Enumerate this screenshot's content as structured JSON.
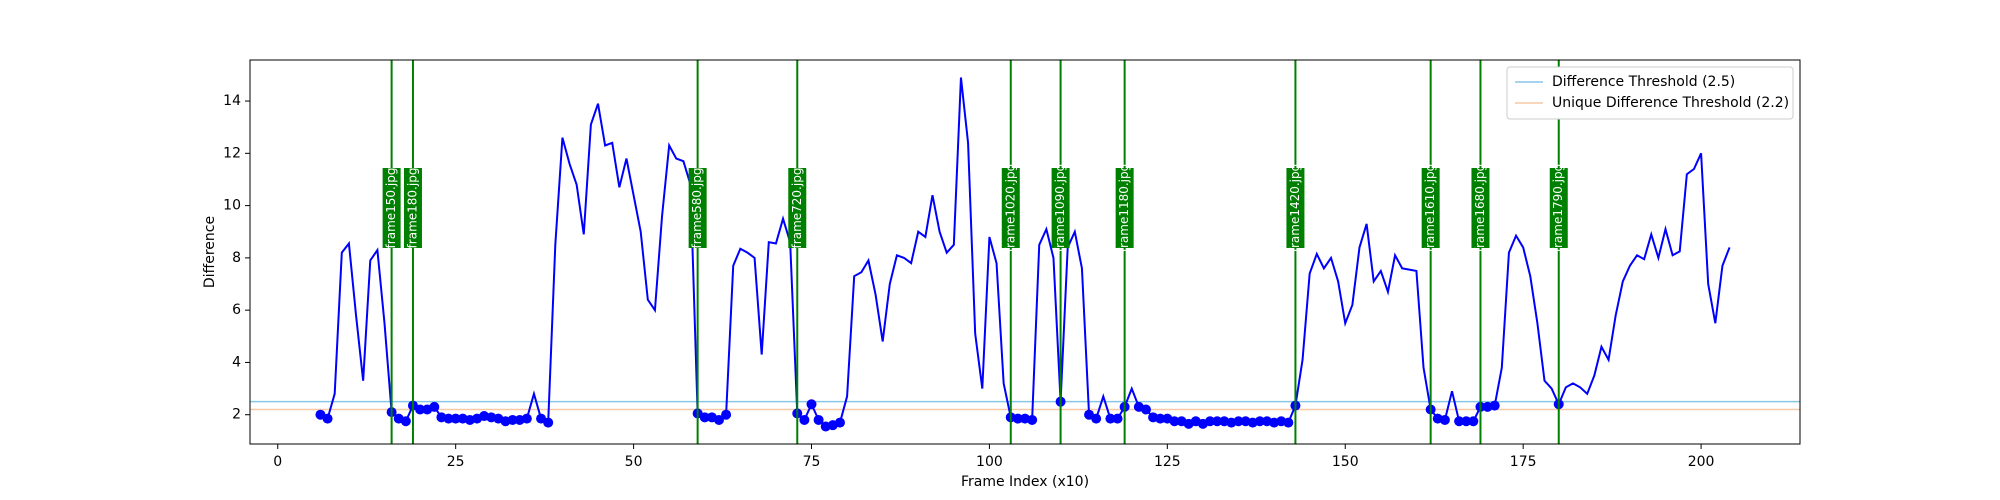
{
  "chart_data": {
    "type": "line",
    "xlabel": "Frame Index (x10)",
    "ylabel": "Difference",
    "x": [
      6,
      7,
      8,
      9,
      10,
      11,
      12,
      13,
      14,
      15,
      16,
      17,
      18,
      19,
      20,
      21,
      22,
      23,
      24,
      25,
      26,
      27,
      28,
      29,
      30,
      31,
      32,
      33,
      34,
      35,
      36,
      37,
      38,
      39,
      40,
      41,
      42,
      43,
      44,
      45,
      46,
      47,
      48,
      49,
      50,
      51,
      52,
      53,
      54,
      55,
      56,
      57,
      58,
      59,
      60,
      61,
      62,
      63,
      64,
      65,
      66,
      67,
      68,
      69,
      70,
      71,
      72,
      73,
      74,
      75,
      76,
      77,
      78,
      79,
      80,
      81,
      82,
      83,
      84,
      85,
      86,
      87,
      88,
      89,
      90,
      91,
      92,
      93,
      94,
      95,
      96,
      97,
      98,
      99,
      100,
      101,
      102,
      103,
      104,
      105,
      106,
      107,
      108,
      109,
      110,
      111,
      112,
      113,
      114,
      115,
      116,
      117,
      118,
      119,
      120,
      121,
      122,
      123,
      124,
      125,
      126,
      127,
      128,
      129,
      130,
      131,
      132,
      133,
      134,
      135,
      136,
      137,
      138,
      139,
      140,
      141,
      142,
      143,
      144,
      145,
      146,
      147,
      148,
      149,
      150,
      151,
      152,
      153,
      154,
      155,
      156,
      157,
      158,
      159,
      160,
      161,
      162,
      163,
      164,
      165,
      166,
      167,
      168,
      169,
      170,
      171,
      172,
      173,
      174,
      175,
      176,
      177,
      178,
      179,
      180,
      181,
      182,
      183,
      184,
      185,
      186,
      187,
      188,
      189,
      190,
      191,
      192,
      193,
      194,
      195,
      196,
      197,
      198,
      199,
      200,
      201,
      202,
      203,
      204
    ],
    "series": [
      {
        "color": "#0000ff",
        "values": [
          2.0,
          1.85,
          2.8,
          8.2,
          8.55,
          5.8,
          3.3,
          7.9,
          8.3,
          5.5,
          2.1,
          1.85,
          1.75,
          2.35,
          2.2,
          2.2,
          2.3,
          1.9,
          1.85,
          1.85,
          1.85,
          1.8,
          1.85,
          1.95,
          1.9,
          1.85,
          1.75,
          1.8,
          1.8,
          1.85,
          2.8,
          1.85,
          1.7,
          8.5,
          12.6,
          11.6,
          10.8,
          8.9,
          13.1,
          13.9,
          12.3,
          12.4,
          10.7,
          11.8,
          10.4,
          9.0,
          6.4,
          6.0,
          9.6,
          12.3,
          11.8,
          11.7,
          10.8,
          2.05,
          1.9,
          1.9,
          1.8,
          2.0,
          7.7,
          8.35,
          8.2,
          8.0,
          4.3,
          8.6,
          8.55,
          9.5,
          8.6,
          2.05,
          1.8,
          2.4,
          1.8,
          1.55,
          1.6,
          1.7,
          2.7,
          7.3,
          7.45,
          7.9,
          6.6,
          4.8,
          7.0,
          8.1,
          8.0,
          7.8,
          9.0,
          8.8,
          10.4,
          9.0,
          8.2,
          8.5,
          14.9,
          12.4,
          5.1,
          3.0,
          8.8,
          7.8,
          3.2,
          1.9,
          1.85,
          1.85,
          1.8,
          8.5,
          9.1,
          8.0,
          2.5,
          8.4,
          9.0,
          7.6,
          2.0,
          1.85,
          2.7,
          1.85,
          1.85,
          2.3,
          3.0,
          2.3,
          2.2,
          1.9,
          1.85,
          1.85,
          1.75,
          1.75,
          1.65,
          1.75,
          1.65,
          1.75,
          1.75,
          1.75,
          1.7,
          1.75,
          1.75,
          1.7,
          1.75,
          1.75,
          1.7,
          1.75,
          1.7,
          2.35,
          4.1,
          7.4,
          8.15,
          7.6,
          8.0,
          7.1,
          5.5,
          6.2,
          8.4,
          9.3,
          7.1,
          7.5,
          6.7,
          8.1,
          7.6,
          7.55,
          7.5,
          3.8,
          2.2,
          1.85,
          1.8,
          2.9,
          1.75,
          1.75,
          1.75,
          2.3,
          2.3,
          2.35,
          3.8,
          8.2,
          8.85,
          8.4,
          7.3,
          5.5,
          3.3,
          3.0,
          2.4,
          3.05,
          3.2,
          3.05,
          2.8,
          3.5,
          4.6,
          4.1,
          5.8,
          7.1,
          7.7,
          8.1,
          7.95,
          8.9,
          8.0,
          9.1,
          8.1,
          8.25,
          11.2,
          11.4,
          12.0,
          7.0,
          5.5,
          7.7,
          8.4
        ]
      }
    ],
    "hlines": [
      {
        "name": "Difference Threshold (2.5)",
        "value": 2.5,
        "color": "#87c7e8"
      },
      {
        "name": "Unique Difference Threshold (2.2)",
        "value": 2.2,
        "color": "#f6c9a8"
      }
    ],
    "vlines": {
      "color": "#008000",
      "x": [
        16,
        19,
        59,
        73,
        103,
        110,
        119,
        143,
        162,
        169,
        180
      ],
      "labels": [
        "frame150.jpg",
        "frame180.jpg",
        "frame580.jpg",
        "frame720.jpg",
        "frame1020.jpg",
        "frame1090.jpg",
        "frame1180.jpg",
        "frame1420.jpg",
        "frame1610.jpg",
        "frame1680.jpg",
        "frame1790.jpg"
      ]
    },
    "xlim": [
      -3.9,
      213.9
    ],
    "ylim": [
      0.88,
      15.57
    ],
    "xticks": [
      0,
      25,
      50,
      75,
      100,
      125,
      150,
      175,
      200
    ],
    "yticks": [
      2,
      4,
      6,
      8,
      10,
      12,
      14
    ],
    "legend": "upper right"
  }
}
